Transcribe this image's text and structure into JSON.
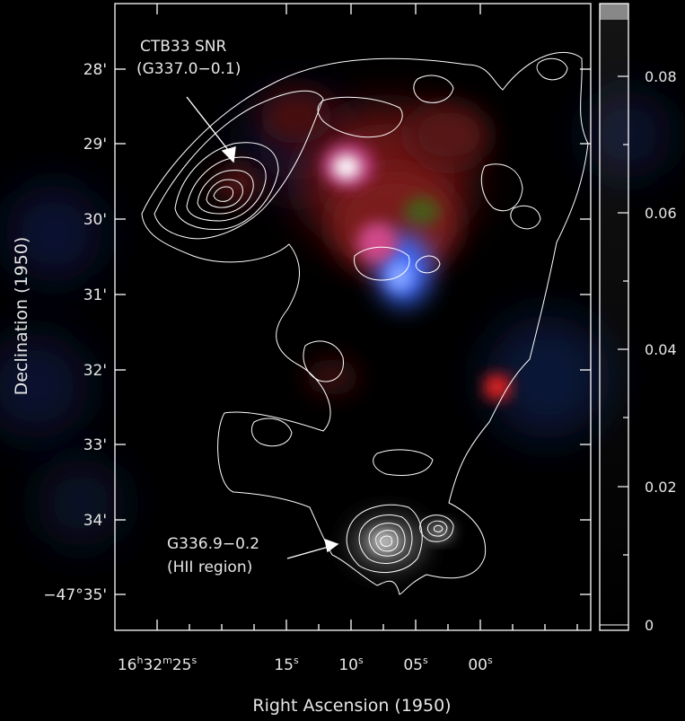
{
  "figure": {
    "x_axis_label": "Right Ascension (1950)",
    "y_axis_label": "Declination (1950)",
    "y_ticks": [
      "28'",
      "29'",
      "30'",
      "31'",
      "32'",
      "33'",
      "34'",
      "−47°35'"
    ],
    "x_ticks": [
      {
        "h": "16",
        "hu": "h",
        "m": "32",
        "mu": "m",
        "s": "25",
        "su": "s"
      },
      {
        "s": "15",
        "su": "s"
      },
      {
        "s": "10",
        "su": "s"
      },
      {
        "s": "05",
        "su": "s"
      },
      {
        "s": "00",
        "su": "s"
      }
    ],
    "colorbar_ticks": [
      "0.08",
      "0.06",
      "0.04",
      "0.02",
      "0"
    ],
    "annotations": {
      "snr_name": "CTB33 SNR",
      "snr_designation": "(G337.0−0.1)",
      "hii_designation": "G336.9−0.2",
      "hii_type": "(HII region)"
    },
    "colors": {
      "background": "#000000",
      "contour": "#ffffff",
      "emission_red": "#d02020",
      "emission_blue": "#3a6cff",
      "frame": "#ffffff"
    }
  }
}
